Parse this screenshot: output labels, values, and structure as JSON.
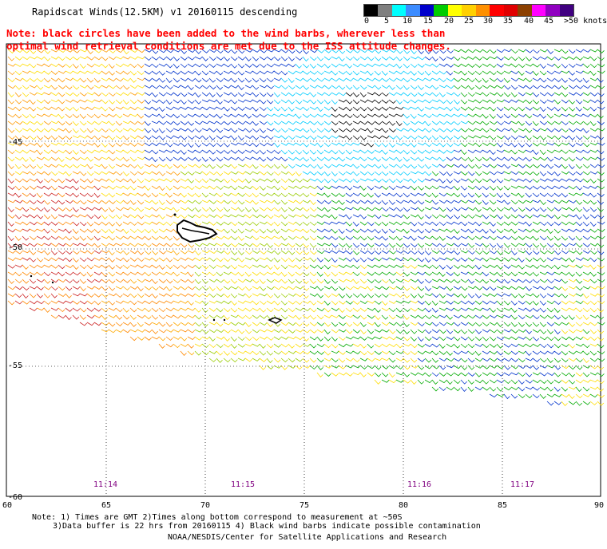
{
  "title": "Rapidscat Winds(12.5KM) v1 20160115 descending",
  "note": {
    "line1": "Note: black circles have been added to the wind barbs, wherever less than",
    "line2": "optimal wind retrieval conditions are met due to the ISS attitude changes."
  },
  "colorbar": {
    "labels": [
      "0",
      "5",
      "10",
      "15",
      "20",
      "25",
      "30",
      "35",
      "40",
      "45",
      ">50 knots"
    ],
    "colors": [
      "#000000",
      "#7f7f7f",
      "#00ffff",
      "#3c8cff",
      "#0000cc",
      "#00cc00",
      "#ffff00",
      "#ffd000",
      "#ff9000",
      "#ff0000",
      "#e00000",
      "#8c4000",
      "#ff00ff",
      "#9000c0",
      "#400080"
    ]
  },
  "map": {
    "lat_labels": [
      "-45",
      "-50",
      "-55",
      "-60"
    ],
    "lon_labels": [
      "60",
      "65",
      "70",
      "75",
      "80",
      "85",
      "90"
    ],
    "time_labels": [
      "11:14",
      "11:15",
      "11:16",
      "11:17"
    ],
    "time_label_color": "#800080"
  },
  "footer": {
    "line1": "Note: 1) Times are GMT 2)Times along bottom correspond to measurement at ~50S",
    "line2": "3)Data buffer is 22 hrs from 20160115 4) Black wind barbs indicate possible contamination",
    "credit": "NOAA/NESDIS/Center for Satellite Applications and Research"
  }
}
